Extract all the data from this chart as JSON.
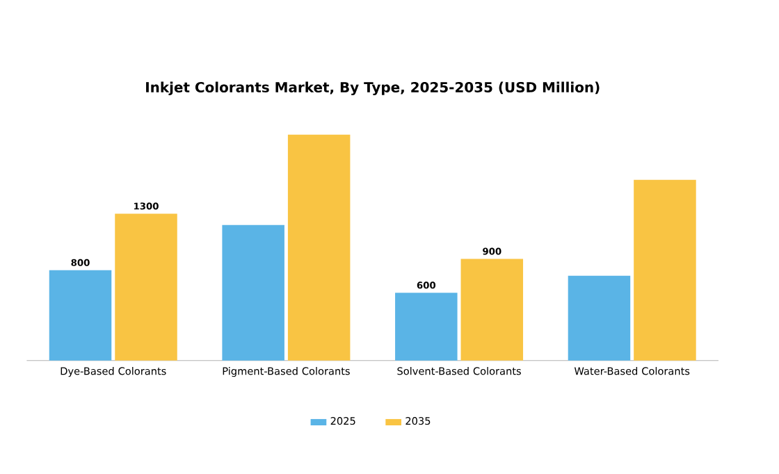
{
  "chart_data": {
    "type": "bar",
    "title": "Inkjet Colorants Market, By Type, 2025-2035 (USD Million)",
    "categories": [
      "Dye-Based Colorants",
      "Pigment-Based Colorants",
      "Solvent-Based Colorants",
      "Water-Based Colorants"
    ],
    "series": [
      {
        "name": "2025",
        "color": "#5ab4e6",
        "values": [
          800,
          1200,
          600,
          750
        ],
        "value_labels": [
          "800",
          null,
          "600",
          null
        ]
      },
      {
        "name": "2035",
        "color": "#f9c443",
        "values": [
          1300,
          2000,
          900,
          1600
        ],
        "value_labels": [
          "1300",
          null,
          "900",
          null
        ]
      }
    ],
    "legend": "bottom",
    "grid": false
  }
}
